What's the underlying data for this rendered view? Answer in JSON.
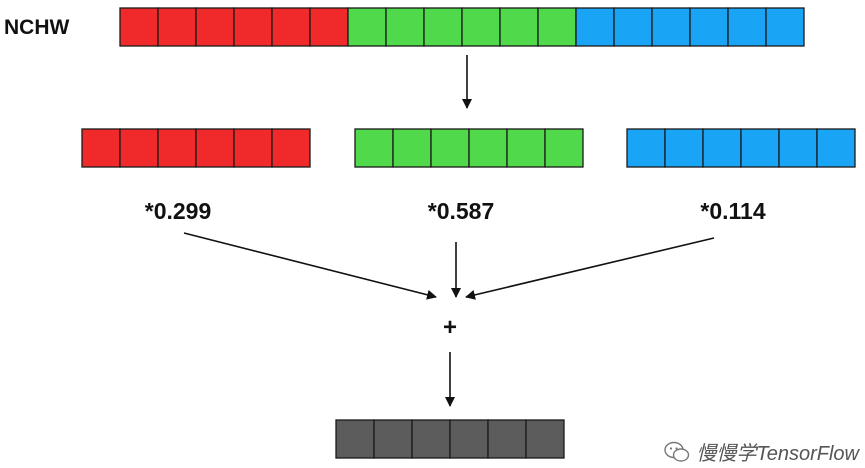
{
  "input": {
    "label": "NCHW",
    "red_cells": 6,
    "green_cells": 6,
    "blue_cells": 6
  },
  "channels": [
    {
      "id": "red",
      "cells": 6,
      "color": "#f02a2a",
      "weight": "*0.299"
    },
    {
      "id": "green",
      "cells": 6,
      "color": "#4fd94b",
      "weight": "*0.587"
    },
    {
      "id": "blue",
      "cells": 6,
      "color": "#1aa4f5",
      "weight": "*0.114"
    }
  ],
  "operation": "+",
  "output": {
    "cells": 6,
    "color": "#5c5c5c"
  },
  "colors": {
    "red": "#f02a2a",
    "green": "#4fd94b",
    "blue": "#1aa4f5",
    "gray": "#5c5c5c",
    "stroke": "#1a1a1a"
  },
  "watermark": "慢慢学TensorFlow"
}
